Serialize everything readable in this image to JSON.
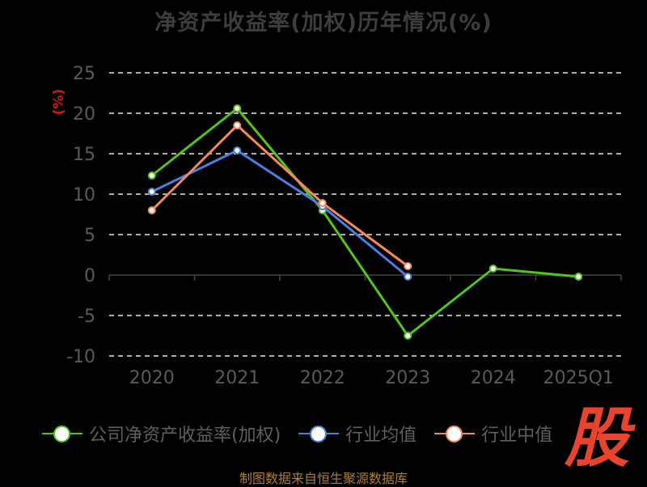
{
  "title": "净资产收益率(加权)历年情况(%)",
  "watermark": "股",
  "source": "制图数据来自恒生聚源数据库",
  "chart_data": {
    "type": "line",
    "title": "净资产收益率(加权)历年情况(%)",
    "ylabel": "(%)",
    "xlabel": "",
    "categories": [
      "2020",
      "2021",
      "2022",
      "2023",
      "2024",
      "2025Q1"
    ],
    "ylim": [
      -10,
      25
    ],
    "yticks": [
      25,
      20,
      15,
      10,
      5,
      0,
      -5,
      -10
    ],
    "grid": true,
    "legend_position": "bottom",
    "series": [
      {
        "name": "公司净资产收益率(加权)",
        "color": "#52c41a",
        "values": [
          12.3,
          20.6,
          8.0,
          -7.5,
          0.8,
          -0.2
        ]
      },
      {
        "name": "行业均值",
        "color": "#4a7fe0",
        "values": [
          10.3,
          15.4,
          8.5,
          -0.2,
          null,
          null
        ]
      },
      {
        "name": "行业中值",
        "color": "#f5895a",
        "values": [
          8.0,
          18.5,
          8.9,
          1.1,
          null,
          null
        ]
      }
    ]
  }
}
